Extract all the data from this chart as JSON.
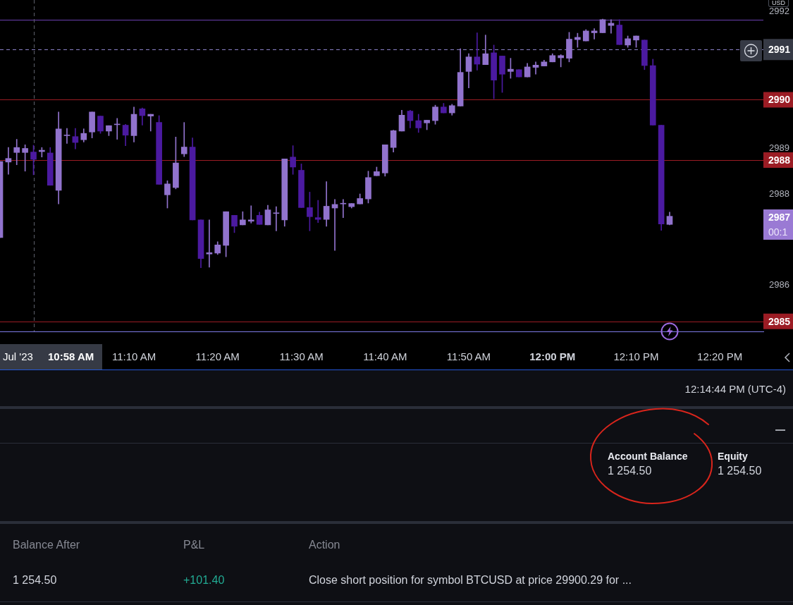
{
  "chart_data": {
    "type": "candlestick",
    "x": [
      10.9,
      10.9167,
      10.9333,
      10.95,
      10.9667,
      10.9833,
      11,
      11.0167,
      11.0333,
      11.05,
      11.0667,
      11.0833,
      11.1,
      11.1167,
      11.1333,
      11.15,
      11.1667,
      11.1833,
      11.2,
      11.2167,
      11.2333,
      11.25,
      11.2667,
      11.2833,
      11.3,
      11.3167,
      11.3333,
      11.35,
      11.3667,
      11.3833,
      11.4,
      11.4167,
      11.4333,
      11.45,
      11.4667,
      11.4833,
      11.5,
      11.5167,
      11.5333,
      11.55,
      11.5667,
      11.5833,
      11.6,
      11.6167,
      11.6333,
      11.65,
      11.6667,
      11.6833,
      11.7,
      11.7167,
      11.7333,
      11.75,
      11.7667,
      11.7833,
      11.8,
      11.8167,
      11.8333,
      11.85,
      11.8667,
      11.8833,
      11.9,
      11.9167,
      11.9333,
      11.95,
      11.9667,
      11.9833,
      12,
      12.0167,
      12.0333,
      12.05,
      12.0667,
      12.0833,
      12.1,
      12.1167,
      12.1333,
      12.15,
      12.1667,
      12.1833,
      12.2,
      12.2167,
      12.2333
    ],
    "ohlc": [
      [
        2987.04,
        2988.71,
        2987.04,
        2988.71
      ],
      [
        2988.7,
        2989.02,
        2988.43,
        2988.78
      ],
      [
        2988.91,
        2989.2,
        2988.64,
        2989.02
      ],
      [
        2988.91,
        2989.08,
        2988.5,
        2989.0
      ],
      [
        2988.92,
        2989.07,
        2988.42,
        2988.76
      ],
      [
        2988.93,
        2989.02,
        2988.81,
        2988.96
      ],
      [
        2988.9,
        2989.02,
        2988.19,
        2988.19
      ],
      [
        2988.08,
        2989.8,
        2987.78,
        2989.43
      ],
      [
        2989.28,
        2989.44,
        2989.11,
        2989.28
      ],
      [
        2989.26,
        2989.44,
        2988.99,
        2989.13
      ],
      [
        2989.19,
        2989.43,
        2989.14,
        2989.33
      ],
      [
        2989.36,
        2989.8,
        2989.23,
        2989.8
      ],
      [
        2989.71,
        2989.71,
        2989.33,
        2989.38
      ],
      [
        2989.38,
        2989.5,
        2989.28,
        2989.5
      ],
      [
        2989.52,
        2989.66,
        2989.2,
        2989.52
      ],
      [
        2989.51,
        2989.53,
        2989.06,
        2989.29
      ],
      [
        2989.28,
        2989.91,
        2989.14,
        2989.75
      ],
      [
        2989.87,
        2989.89,
        2989.51,
        2989.72
      ],
      [
        2989.71,
        2989.75,
        2989.38,
        2989.75
      ],
      [
        2989.57,
        2989.72,
        2988.21,
        2988.21
      ],
      [
        2987.98,
        2988.29,
        2987.69,
        2988.22
      ],
      [
        2988.14,
        2989.25,
        2988.11,
        2988.68
      ],
      [
        2988.88,
        2989.57,
        2988.82,
        2989.03
      ],
      [
        2989.03,
        2989.23,
        2987.43,
        2987.43
      ],
      [
        2987.43,
        2987.43,
        2986.38,
        2986.58
      ],
      [
        2986.68,
        2987.43,
        2986.39,
        2986.71
      ],
      [
        2986.7,
        2986.95,
        2986.67,
        2986.88
      ],
      [
        2986.87,
        2987.61,
        2986.62,
        2987.61
      ],
      [
        2987.53,
        2987.53,
        2987.15,
        2987.29
      ],
      [
        2987.32,
        2987.61,
        2987.32,
        2987.43
      ],
      [
        2987.4,
        2987.74,
        2987.36,
        2987.43
      ],
      [
        2987.53,
        2987.6,
        2987.33,
        2987.33
      ],
      [
        2987.32,
        2987.75,
        2987.32,
        2987.65
      ],
      [
        2987.57,
        2987.72,
        2987.19,
        2987.57
      ],
      [
        2987.43,
        2988.77,
        2987.29,
        2988.77
      ],
      [
        2988.81,
        2989.06,
        2988.43,
        2988.59
      ],
      [
        2988.52,
        2988.66,
        2987.7,
        2987.7
      ],
      [
        2987.7,
        2988.04,
        2987.19,
        2987.5
      ],
      [
        2987.48,
        2987.86,
        2987.37,
        2987.44
      ],
      [
        2987.44,
        2988.27,
        2987.29,
        2987.73
      ],
      [
        2987.69,
        2987.88,
        2986.76,
        2987.77
      ],
      [
        2987.78,
        2987.88,
        2987.48,
        2987.78
      ],
      [
        2987.72,
        2987.79,
        2987.69,
        2987.79
      ],
      [
        2987.78,
        2988.0,
        2987.78,
        2987.9
      ],
      [
        2987.89,
        2988.5,
        2987.8,
        2988.36
      ],
      [
        2988.4,
        2988.59,
        2988.4,
        2988.49
      ],
      [
        2988.46,
        2989.08,
        2988.39,
        2989.08
      ],
      [
        2989.02,
        2989.4,
        2988.92,
        2989.39
      ],
      [
        2989.38,
        2989.84,
        2989.38,
        2989.73
      ],
      [
        2989.82,
        2989.84,
        2989.45,
        2989.61
      ],
      [
        2989.61,
        2989.75,
        2989.35,
        2989.45
      ],
      [
        2989.56,
        2989.62,
        2989.41,
        2989.62
      ],
      [
        2989.61,
        2989.95,
        2989.53,
        2989.91
      ],
      [
        2989.91,
        2989.99,
        2989.78,
        2989.78
      ],
      [
        2989.78,
        2989.97,
        2989.73,
        2989.94
      ],
      [
        2989.93,
        2991.19,
        2989.93,
        2990.67
      ],
      [
        2990.69,
        2991.08,
        2990.33,
        2991.01
      ],
      [
        2991.01,
        2991.54,
        2990.72,
        2990.85
      ],
      [
        2990.84,
        2991.49,
        2990.84,
        2991.08
      ],
      [
        2991.1,
        2991.27,
        2990.09,
        2990.5
      ],
      [
        2991.03,
        2991.03,
        2990.23,
        2990.63
      ],
      [
        2990.69,
        2990.98,
        2990.54,
        2990.74
      ],
      [
        2990.73,
        2990.73,
        2990.57,
        2990.57
      ],
      [
        2990.57,
        2990.87,
        2990.57,
        2990.79
      ],
      [
        2990.78,
        2990.9,
        2990.63,
        2990.83
      ],
      [
        2990.81,
        2990.94,
        2990.81,
        2990.9
      ],
      [
        2990.9,
        2991.08,
        2990.9,
        2991.04
      ],
      [
        2990.99,
        2991.06,
        2990.79,
        2991.04
      ],
      [
        2990.98,
        2991.55,
        2990.9,
        2991.4
      ],
      [
        2991.39,
        2991.53,
        2991.22,
        2991.44
      ],
      [
        2991.36,
        2991.61,
        2991.36,
        2991.58
      ],
      [
        2991.54,
        2991.63,
        2991.4,
        2991.58
      ],
      [
        2991.54,
        2991.84,
        2991.54,
        2991.83
      ],
      [
        2991.7,
        2991.83,
        2991.53,
        2991.75
      ],
      [
        2991.71,
        2991.83,
        2991.28,
        2991.28
      ],
      [
        2991.27,
        2991.47,
        2991.22,
        2991.41
      ],
      [
        2991.38,
        2991.47,
        2991.22,
        2991.47
      ],
      [
        2991.38,
        2991.38,
        2990.73,
        2990.82
      ],
      [
        2990.82,
        2990.96,
        2989.51,
        2989.51
      ],
      [
        2989.51,
        2989.51,
        2987.2,
        2987.34
      ],
      [
        2987.33,
        2987.6,
        2987.32,
        2987.51
      ]
    ],
    "colors": [
      "#9173cd",
      "#9173cd",
      "#9173cd",
      "#9173cd",
      "#4b1aa0",
      "#9173cd",
      "#4b1aa0",
      "#9173cd",
      "#9173cd",
      "#4b1aa0",
      "#9173cd",
      "#9173cd",
      "#4b1aa0",
      "#9173cd",
      "#9173cd",
      "#4b1aa0",
      "#9173cd",
      "#4b1aa0",
      "#9173cd",
      "#4b1aa0",
      "#9173cd",
      "#9173cd",
      "#9173cd",
      "#4b1aa0",
      "#4b1aa0",
      "#9173cd",
      "#9173cd",
      "#9173cd",
      "#4b1aa0",
      "#9173cd",
      "#9173cd",
      "#4b1aa0",
      "#9173cd",
      "#9173cd",
      "#9173cd",
      "#4b1aa0",
      "#4b1aa0",
      "#4b1aa0",
      "#4b1aa0",
      "#9173cd",
      "#9173cd",
      "#9173cd",
      "#9173cd",
      "#9173cd",
      "#9173cd",
      "#9173cd",
      "#9173cd",
      "#9173cd",
      "#9173cd",
      "#4b1aa0",
      "#4b1aa0",
      "#9173cd",
      "#9173cd",
      "#4b1aa0",
      "#9173cd",
      "#9173cd",
      "#9173cd",
      "#4b1aa0",
      "#9173cd",
      "#4b1aa0",
      "#4b1aa0",
      "#9173cd",
      "#4b1aa0",
      "#9173cd",
      "#9173cd",
      "#9173cd",
      "#9173cd",
      "#9173cd",
      "#9173cd",
      "#9173cd",
      "#9173cd",
      "#9173cd",
      "#9173cd",
      "#9173cd",
      "#4b1aa0",
      "#9173cd",
      "#9173cd",
      "#4b1aa0",
      "#4b1aa0",
      "#4b1aa0",
      "#9173cd"
    ],
    "xlim": [
      10.9,
      12.42
    ],
    "xticks": [
      {
        "value": 11.1667,
        "label": "11:10 AM"
      },
      {
        "value": 11.3333,
        "label": "11:20 AM"
      },
      {
        "value": 11.5,
        "label": "11:30 AM"
      },
      {
        "value": 11.6667,
        "label": "11:40 AM"
      },
      {
        "value": 11.8333,
        "label": "11:50 AM"
      },
      {
        "value": 12,
        "label": "12:00 PM"
      },
      {
        "value": 12.1667,
        "label": "12:10 PM"
      },
      {
        "value": 12.3333,
        "label": "12:20 PM"
      }
    ],
    "ylim": [
      2984.98,
      2992.26
    ],
    "yticks": [
      2992,
      2989,
      2988,
      2986
    ],
    "ref_lines": [
      {
        "axis": "y",
        "value": 2991.82,
        "color": "#6a3fb0"
      },
      {
        "axis": "y",
        "value": 2991.17,
        "label": "2991",
        "color": "#8a80c8",
        "line_style": "dashed"
      },
      {
        "axis": "y",
        "value": 2990.07,
        "label": "2990",
        "color": "#9b1c24"
      },
      {
        "axis": "y",
        "value": 2988.75,
        "color": "#9b1c24"
      },
      {
        "axis": "y",
        "value": 2985.2,
        "label": "2985",
        "color": "#9b1c24"
      },
      {
        "axis": "x",
        "value": 10.9667,
        "color": "#5d606b",
        "line_style": "dashed"
      }
    ],
    "annotations": [
      "Jul '23",
      "10:58 AM",
      "2987",
      "00:1",
      "USD",
      "2988",
      "12:14:44 PM (UTC-4)",
      "Account Balance",
      "1 254.50",
      "Equity",
      "1 254.50",
      "Balance After",
      "P&L",
      "Action",
      "1 254.50",
      "+101.40",
      "Close short position for symbol BTCUSD at price 29900.29 for ..."
    ]
  }
}
